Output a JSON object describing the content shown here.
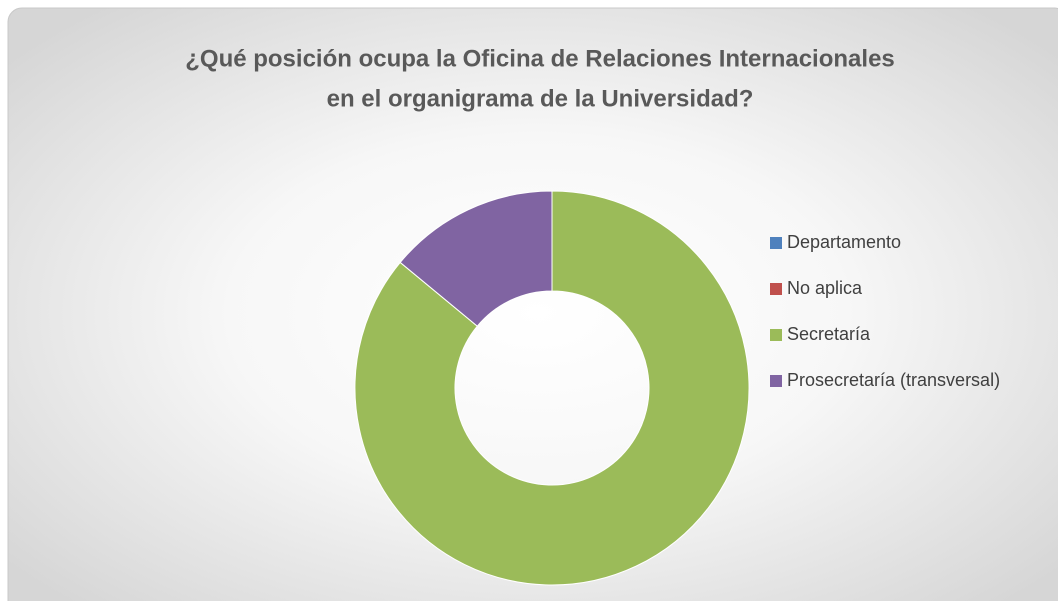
{
  "chart_data": {
    "type": "donut",
    "title": [
      "¿Qué posición ocupa la Oficina de Relaciones Internacionales",
      "en el organigrama de la Universidad?"
    ],
    "categories": [
      "Departamento",
      "No aplica",
      "Secretaría",
      "Prosecretaría (transversal)"
    ],
    "values": [
      0,
      0,
      86,
      14
    ],
    "colors": [
      "#4f81bd",
      "#c0504d",
      "#9bbb59",
      "#8064a2"
    ],
    "legend": "right"
  }
}
